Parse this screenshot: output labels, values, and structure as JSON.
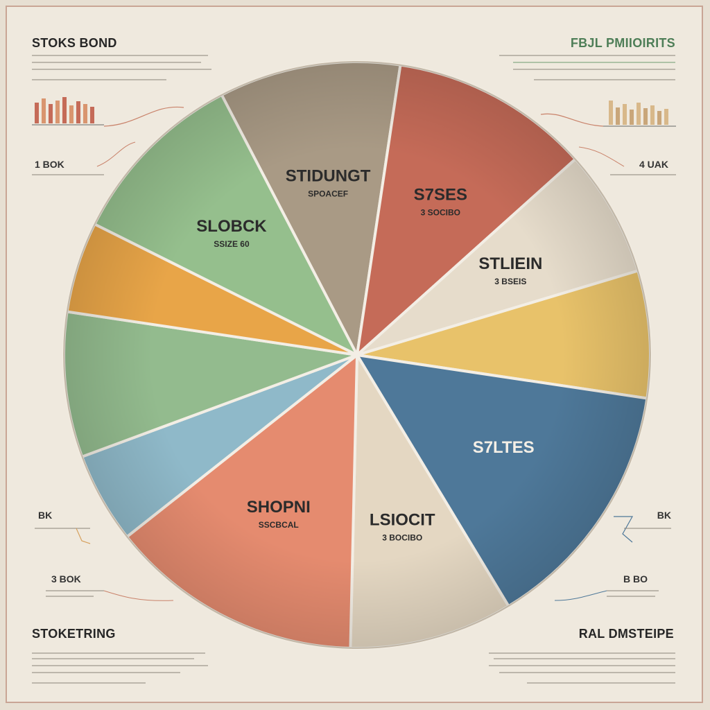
{
  "corners": {
    "top_left_title": "STOKS BOND",
    "top_right_title": "FBJL PMIIOIRITS",
    "bottom_left_title": "STOKETRING",
    "bottom_right_title": "RAL DMSTEIPE"
  },
  "side_values": {
    "left_1": "1 BOK",
    "left_2": "BK",
    "left_3": "3 BOK",
    "right_1": "4 UAK",
    "right_2": "BK",
    "right_3": "B BO"
  },
  "chart_data": {
    "type": "pie",
    "title": "",
    "slices": [
      {
        "label": "STIDUNGT",
        "sub": "SPOACEF",
        "value": 10,
        "color": "#a99a85"
      },
      {
        "label": "S7SES",
        "sub": "3 SOCIBO",
        "value": 11,
        "color": "#c56b58"
      },
      {
        "label": "STLIEIN",
        "sub": "3 BSEIS",
        "value": 7,
        "color": "#e6dccb"
      },
      {
        "label": "",
        "sub": "",
        "value": 7,
        "color": "#e8c26a"
      },
      {
        "label": "S7LTES",
        "sub": "",
        "value": 14,
        "color": "#4e7899"
      },
      {
        "label": "LSIOCIT",
        "sub": "3 BOCIBO",
        "value": 9,
        "color": "#e4d7c2"
      },
      {
        "label": "SHOPNI",
        "sub": "SSCBCAL",
        "value": 14,
        "color": "#e58b6f"
      },
      {
        "label": "",
        "sub": "",
        "value": 5,
        "color": "#8fb9c9"
      },
      {
        "label": "",
        "sub": "",
        "value": 8,
        "color": "#93bb8e"
      },
      {
        "label": "",
        "sub": "",
        "value": 5,
        "color": "#e8a548"
      },
      {
        "label": "SLOBCK",
        "sub": "SSIZE 60",
        "value": 10,
        "color": "#95bf8d"
      }
    ]
  }
}
